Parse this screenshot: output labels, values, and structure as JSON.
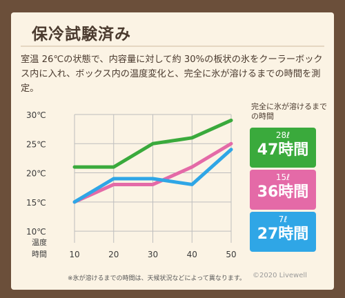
{
  "title": "保冷試験済み",
  "description": "室温 26℃の状態で、内容量に対して約 30%の板状の氷をクーラーボックス内に入れ、ボックス内の温度変化と、完全に氷が溶けるまでの時間を測定。",
  "legend_note": "完全に氷が溶けるまでの時間",
  "results": [
    {
      "volume": "28ℓ",
      "time": "47時間",
      "color": "#3aaa3c"
    },
    {
      "volume": "15ℓ",
      "time": "36時間",
      "color": "#e46aa7"
    },
    {
      "volume": "7ℓ",
      "time": "27時間",
      "color": "#2fa6e6"
    }
  ],
  "footnote": "※氷が溶けるまでの時間は、天候状況などによって異なります。",
  "copyright": "©2020 Livewell",
  "chart_data": {
    "type": "line",
    "xlabel": "時間",
    "ylabel": "温度",
    "x": [
      10,
      20,
      30,
      40,
      50
    ],
    "x_tick_labels": [
      "10",
      "20",
      "30",
      "40",
      "50"
    ],
    "y_tick_labels": [
      "30℃",
      "25℃",
      "20℃",
      "15℃",
      "10℃"
    ],
    "y_ticks": [
      30,
      25,
      20,
      15,
      10
    ],
    "xlim": [
      10,
      50
    ],
    "ylim": [
      8,
      30
    ],
    "grid": true,
    "series": [
      {
        "name": "28ℓ",
        "color": "#3aaa3c",
        "values": [
          21,
          21,
          25,
          26,
          29
        ]
      },
      {
        "name": "15ℓ",
        "color": "#e46aa7",
        "values": [
          15,
          18,
          18,
          21,
          25
        ]
      },
      {
        "name": "7ℓ",
        "color": "#2fa6e6",
        "values": [
          15,
          19,
          19,
          18,
          24
        ]
      }
    ]
  }
}
